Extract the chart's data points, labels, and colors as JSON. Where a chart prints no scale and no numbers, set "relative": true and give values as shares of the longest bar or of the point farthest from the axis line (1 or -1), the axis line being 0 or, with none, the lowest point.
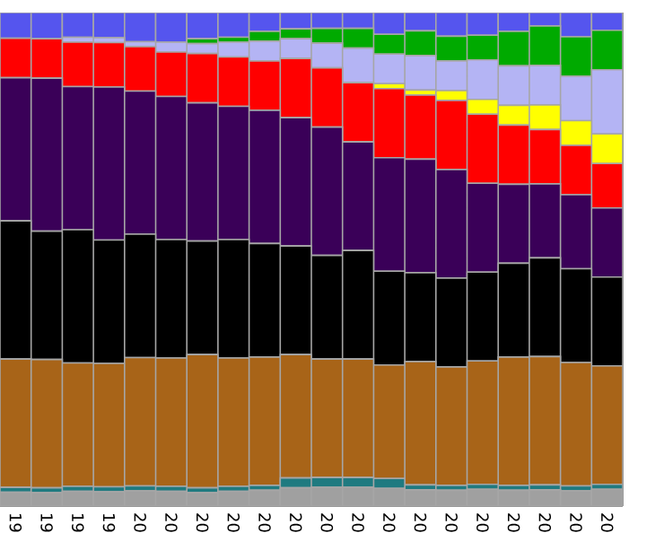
{
  "chart_data": {
    "type": "bar",
    "stacked": true,
    "relative": true,
    "categories": [
      "19",
      "19",
      "19",
      "19",
      "20",
      "20",
      "20",
      "20",
      "20",
      "20",
      "20",
      "20",
      "20",
      "20",
      "20",
      "20",
      "20",
      "20",
      "20",
      "20"
    ],
    "series": [
      {
        "color": "#a0a0a0",
        "values": [
          0.028,
          0.027,
          0.03,
          0.029,
          0.031,
          0.03,
          0.027,
          0.03,
          0.032,
          0.037,
          0.038,
          0.038,
          0.036,
          0.033,
          0.032,
          0.034,
          0.032,
          0.033,
          0.031,
          0.034
        ]
      },
      {
        "color": "#1f7a80",
        "values": [
          0.01,
          0.01,
          0.01,
          0.01,
          0.01,
          0.01,
          0.01,
          0.01,
          0.01,
          0.02,
          0.02,
          0.02,
          0.02,
          0.01,
          0.01,
          0.01,
          0.01,
          0.01,
          0.01,
          0.01
        ]
      },
      {
        "color": "#a86418",
        "values": [
          0.26,
          0.26,
          0.25,
          0.25,
          0.26,
          0.26,
          0.27,
          0.26,
          0.26,
          0.25,
          0.24,
          0.24,
          0.23,
          0.25,
          0.24,
          0.25,
          0.26,
          0.26,
          0.25,
          0.24
        ]
      },
      {
        "color": "#000000",
        "values": [
          0.28,
          0.26,
          0.27,
          0.25,
          0.25,
          0.24,
          0.23,
          0.24,
          0.23,
          0.22,
          0.21,
          0.22,
          0.19,
          0.18,
          0.18,
          0.18,
          0.19,
          0.2,
          0.19,
          0.18
        ]
      },
      {
        "color": "#3a0058",
        "values": [
          0.29,
          0.31,
          0.29,
          0.31,
          0.29,
          0.29,
          0.28,
          0.27,
          0.27,
          0.26,
          0.26,
          0.22,
          0.23,
          0.23,
          0.22,
          0.18,
          0.16,
          0.15,
          0.15,
          0.14
        ]
      },
      {
        "color": "#ff0000",
        "values": [
          0.08,
          0.08,
          0.09,
          0.09,
          0.09,
          0.09,
          0.1,
          0.1,
          0.1,
          0.12,
          0.12,
          0.12,
          0.14,
          0.13,
          0.14,
          0.14,
          0.12,
          0.11,
          0.1,
          0.09
        ]
      },
      {
        "color": "#ffff00",
        "values": [
          0,
          0,
          0,
          0,
          0,
          0,
          0,
          0,
          0,
          0,
          0,
          0,
          0.01,
          0.01,
          0.02,
          0.03,
          0.04,
          0.05,
          0.05,
          0.06
        ]
      },
      {
        "color": "#b4b4f4",
        "values": [
          0,
          0,
          0.01,
          0.01,
          0.01,
          0.02,
          0.02,
          0.03,
          0.04,
          0.04,
          0.05,
          0.07,
          0.06,
          0.07,
          0.06,
          0.08,
          0.08,
          0.08,
          0.09,
          0.13
        ]
      },
      {
        "color": "#00aa00",
        "values": [
          0,
          0,
          0,
          0,
          0,
          0,
          0.01,
          0.01,
          0.02,
          0.02,
          0.03,
          0.04,
          0.04,
          0.05,
          0.05,
          0.05,
          0.07,
          0.08,
          0.08,
          0.08
        ]
      },
      {
        "color": "#5555ee",
        "values": [
          0.052,
          0.053,
          0.05,
          0.051,
          0.059,
          0.06,
          0.053,
          0.05,
          0.038,
          0.033,
          0.032,
          0.032,
          0.044,
          0.037,
          0.048,
          0.046,
          0.038,
          0.027,
          0.049,
          0.036
        ]
      }
    ]
  }
}
